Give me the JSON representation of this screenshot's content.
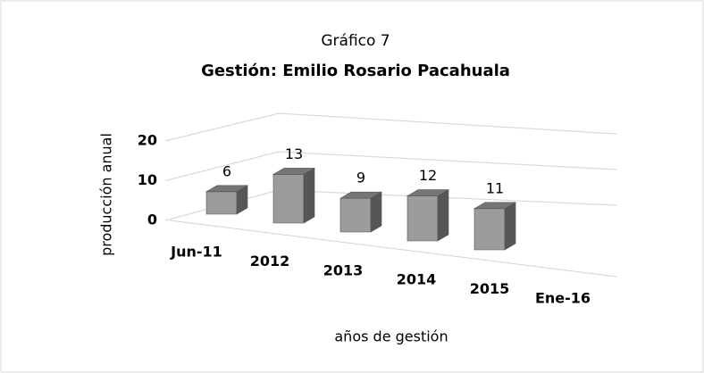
{
  "chart_data": {
    "type": "bar3d",
    "title": "Gráfico 7",
    "subtitle": "Gestión: Emilio Rosario Pacahuala",
    "ylabel": "producción anual",
    "xlabel": "años de gestión",
    "categories": [
      "Jun-11",
      "2012",
      "2013",
      "2014",
      "2015",
      "Ene-16"
    ],
    "values": [
      6,
      13,
      9,
      12,
      11,
      null
    ],
    "color": "#9c9c9c",
    "ylim": [
      0,
      20
    ],
    "yticks": [
      0,
      10,
      20
    ],
    "grid": true
  }
}
